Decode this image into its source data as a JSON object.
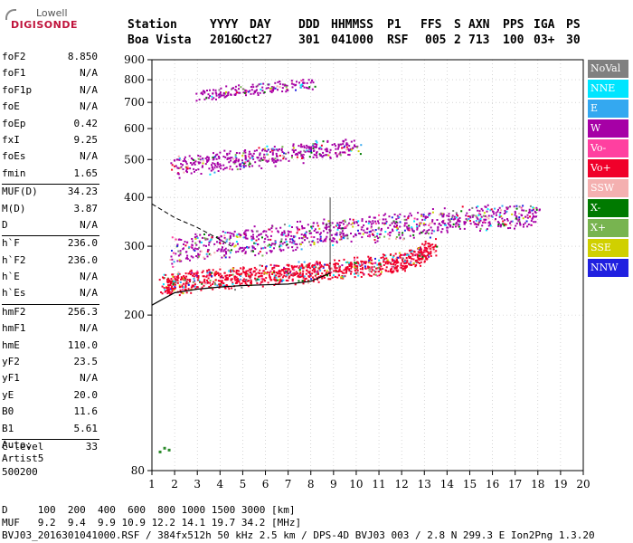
{
  "logo": {
    "line1": "Lowell",
    "line2": "DIGISONDE"
  },
  "header": {
    "labels": [
      "Station",
      "YYYY",
      "DAY",
      "DDD",
      "HHMMSS",
      "P1",
      "FFS",
      "S",
      "AXN",
      "PPS",
      "IGA",
      "PS"
    ],
    "values": [
      "Boa Vista",
      "2016",
      "Oct27",
      "301",
      "041000",
      "RSF",
      "005",
      "2",
      "713",
      "100",
      "03+",
      "30"
    ]
  },
  "params": [
    {
      "k": "foF2",
      "v": "8.850"
    },
    {
      "k": "foF1",
      "v": "N/A"
    },
    {
      "k": "foF1p",
      "v": "N/A"
    },
    {
      "k": "foE",
      "v": "N/A"
    },
    {
      "k": "foEp",
      "v": "0.42"
    },
    {
      "k": "fxI",
      "v": "9.25"
    },
    {
      "k": "foEs",
      "v": "N/A"
    },
    {
      "k": "fmin",
      "v": "1.65"
    },
    {
      "sep": true
    },
    {
      "k": "MUF(D)",
      "v": "34.23"
    },
    {
      "k": "M(D)",
      "v": "3.87"
    },
    {
      "k": "D",
      "v": "N/A"
    },
    {
      "sep": true
    },
    {
      "k": "h`F",
      "v": "236.0"
    },
    {
      "k": "h`F2",
      "v": "236.0"
    },
    {
      "k": "h`E",
      "v": "N/A"
    },
    {
      "k": "h`Es",
      "v": "N/A"
    },
    {
      "sep": true
    },
    {
      "k": "hmF2",
      "v": "256.3"
    },
    {
      "k": "hmF1",
      "v": "N/A"
    },
    {
      "k": "hmE",
      "v": "110.0"
    },
    {
      "k": "yF2",
      "v": "23.5"
    },
    {
      "k": "yF1",
      "v": "N/A"
    },
    {
      "k": "yE",
      "v": "20.0"
    },
    {
      "k": "B0",
      "v": "11.6"
    },
    {
      "k": "B1",
      "v": "5.61"
    },
    {
      "sep": true
    },
    {
      "k": "C-level",
      "v": "33"
    }
  ],
  "auto": {
    "line1": "Auto:",
    "line2": "Artist5",
    "line3": "500200"
  },
  "bottom": {
    "line1": "D     100  200  400  600  800 1000 1500 3000 [km]",
    "line2": "MUF   9.2  9.4  9.9 10.9 12.2 14.1 19.7 34.2 [MHz]",
    "line3": "BVJ03_2016301041000.RSF / 384fx512h 50 kHz 2.5 km / DPS-4D BVJ03 003 / 2.8 N 299.3 E Ion2Png 1.3.20"
  },
  "legend": [
    {
      "label": "NoVal",
      "color": "#808080"
    },
    {
      "label": "NNE",
      "color": "#00e5ff"
    },
    {
      "label": "E",
      "color": "#34a8f0"
    },
    {
      "label": "W",
      "color": "#a600a6"
    },
    {
      "label": "Vo-",
      "color": "#ff40a0"
    },
    {
      "label": "Vo+",
      "color": "#f0002a"
    },
    {
      "label": "SSW",
      "color": "#f4b0b0"
    },
    {
      "label": "X-",
      "color": "#007a00"
    },
    {
      "label": "X+",
      "color": "#78b450"
    },
    {
      "label": "SSE",
      "color": "#d0d000"
    },
    {
      "label": "NNW",
      "color": "#2020e0"
    }
  ],
  "chart_data": {
    "type": "scatter",
    "xlim": [
      1,
      20
    ],
    "ylim": [
      80,
      900
    ],
    "xticks": [
      "1",
      "2",
      "3",
      "4",
      "5",
      "6",
      "7",
      "8",
      "9",
      "10",
      "11",
      "12",
      "13",
      "14",
      "15",
      "16",
      "17",
      "18",
      "19",
      "20"
    ],
    "yticks": [
      {
        "v": 80,
        "label": "80"
      },
      {
        "v": 200,
        "label": "200"
      },
      {
        "v": 300,
        "label": "300"
      },
      {
        "v": 400,
        "label": "400"
      },
      {
        "v": 500,
        "label": "500"
      },
      {
        "v": 600,
        "label": "600"
      },
      {
        "v": 700,
        "label": "700"
      },
      {
        "v": 800,
        "label": "800"
      },
      {
        "v": 900,
        "label": "900"
      }
    ],
    "grid": true,
    "scale_y": "log",
    "series": [
      {
        "name": "O-trace lower (F2)",
        "color": "#f0002a",
        "points": [
          [
            1.5,
            240
          ],
          [
            2,
            243
          ],
          [
            3,
            246
          ],
          [
            4,
            249
          ],
          [
            5,
            252
          ],
          [
            6,
            254
          ],
          [
            7,
            257
          ],
          [
            8,
            260
          ],
          [
            9,
            263
          ],
          [
            10,
            266
          ],
          [
            11,
            270
          ],
          [
            12,
            276
          ],
          [
            12.8,
            285
          ],
          [
            13.3,
            300
          ]
        ]
      },
      {
        "name": "W upper",
        "color": "#a600a6",
        "points": [
          [
            1.9,
            290
          ],
          [
            3,
            300
          ],
          [
            4,
            305
          ],
          [
            5,
            308
          ],
          [
            6,
            312
          ],
          [
            7,
            318
          ],
          [
            8,
            325
          ],
          [
            9,
            330
          ],
          [
            10,
            333
          ],
          [
            11,
            336
          ],
          [
            12,
            340
          ],
          [
            13,
            345
          ],
          [
            14,
            350
          ],
          [
            15,
            355
          ],
          [
            16,
            358
          ],
          [
            17,
            360
          ],
          [
            18,
            360
          ]
        ]
      },
      {
        "name": "Multihop band",
        "color": "#a600a6",
        "points": [
          [
            2,
            480
          ],
          [
            3,
            488
          ],
          [
            4,
            496
          ],
          [
            5,
            504
          ],
          [
            6,
            512
          ],
          [
            7,
            520
          ],
          [
            8,
            528
          ],
          [
            9,
            536
          ],
          [
            10,
            544
          ]
        ]
      },
      {
        "name": "Upper band",
        "color": "#a600a6",
        "points": [
          [
            3,
            735
          ],
          [
            4,
            745
          ],
          [
            5,
            755
          ],
          [
            6,
            765
          ],
          [
            7,
            775
          ],
          [
            8,
            785
          ]
        ]
      }
    ],
    "profile": {
      "name": "profile",
      "color": "#000000",
      "points": [
        [
          1,
          212
        ],
        [
          1.5,
          220
        ],
        [
          2,
          228
        ],
        [
          3,
          233
        ],
        [
          4,
          236
        ],
        [
          5,
          238
        ],
        [
          6,
          239
        ],
        [
          7,
          240
        ],
        [
          8,
          244
        ],
        [
          8.85,
          256
        ]
      ]
    },
    "profile_upper": {
      "color": "#000000",
      "points": [
        [
          1,
          385
        ],
        [
          2,
          355
        ],
        [
          3,
          335
        ],
        [
          4,
          312
        ],
        [
          4.5,
          300
        ]
      ]
    },
    "fof2_marker": {
      "x": 8.85,
      "y_from": 256,
      "y_to": 400
    },
    "es_points": [
      [
        1.3,
        90
      ],
      [
        1.5,
        92
      ],
      [
        1.7,
        91
      ]
    ]
  }
}
